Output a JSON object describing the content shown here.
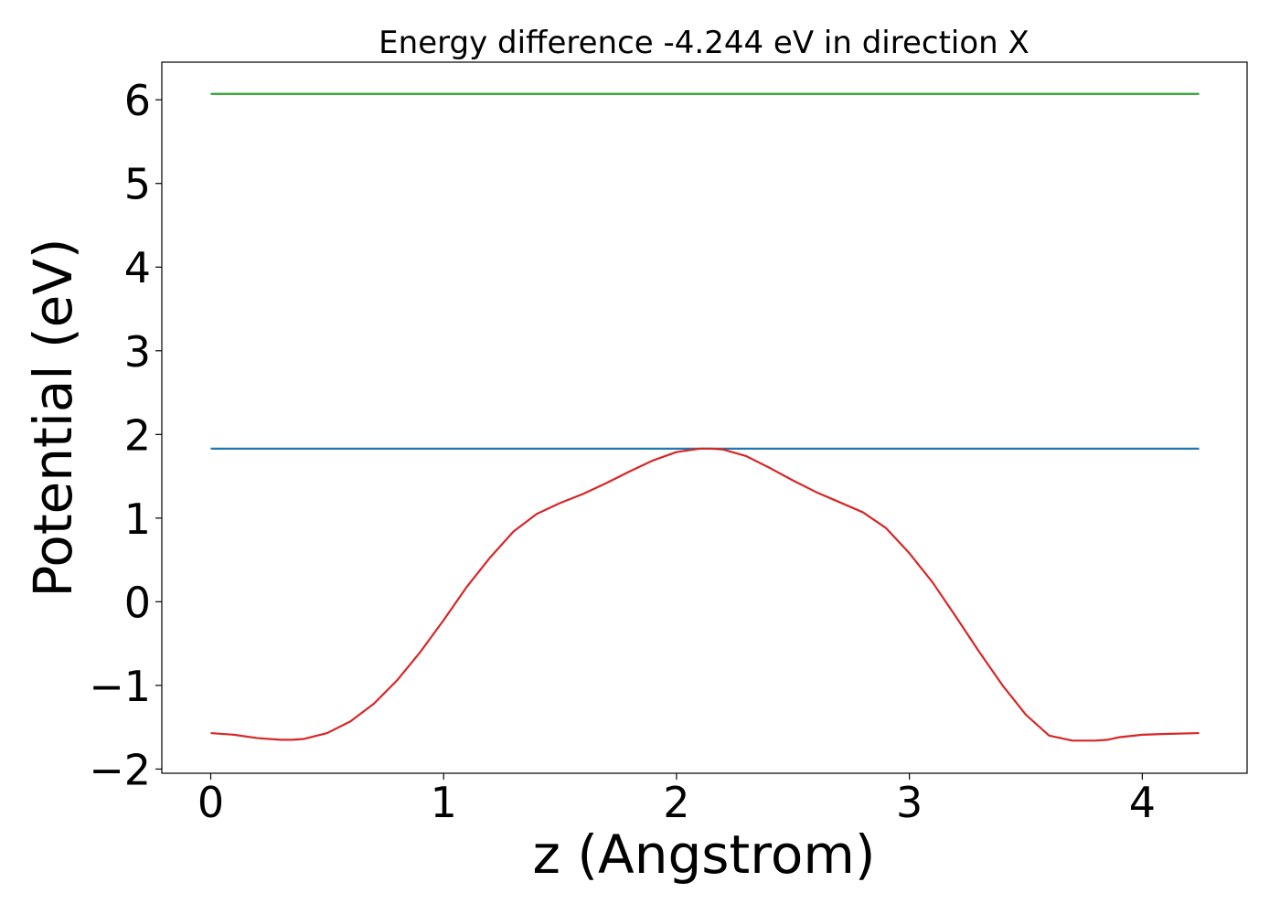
{
  "chart_data": {
    "type": "line",
    "title": "Energy difference -4.244 eV in direction X",
    "xlabel": "z (Angstrom)",
    "ylabel": "Potential (eV)",
    "xlim": [
      -0.21,
      4.45
    ],
    "ylim": [
      -2.05,
      6.45
    ],
    "xticks": [
      0,
      1,
      2,
      3,
      4
    ],
    "yticks": [
      -2,
      -1,
      0,
      1,
      2,
      3,
      4,
      5,
      6
    ],
    "xtick_labels": [
      "0",
      "1",
      "2",
      "3",
      "4"
    ],
    "ytick_labels": [
      "−2",
      "−1",
      "0",
      "1",
      "2",
      "3",
      "4",
      "5",
      "6"
    ],
    "grid": false,
    "legend": false,
    "series": [
      {
        "color": "#2ca02c",
        "x": [
          0,
          4.244
        ],
        "y": [
          6.07,
          6.07
        ]
      },
      {
        "color": "#1f77b4",
        "x": [
          0,
          4.244
        ],
        "y": [
          1.83,
          1.83
        ]
      },
      {
        "color": "#d62728",
        "x": [
          0,
          0.1,
          0.2,
          0.3,
          0.35,
          0.4,
          0.5,
          0.6,
          0.7,
          0.8,
          0.9,
          1.0,
          1.1,
          1.2,
          1.3,
          1.4,
          1.5,
          1.6,
          1.7,
          1.8,
          1.9,
          2.0,
          2.1,
          2.15,
          2.2,
          2.3,
          2.4,
          2.5,
          2.6,
          2.7,
          2.8,
          2.9,
          3.0,
          3.1,
          3.2,
          3.3,
          3.4,
          3.5,
          3.6,
          3.7,
          3.8,
          3.85,
          3.9,
          4.0,
          4.1,
          4.244
        ],
        "y": [
          -1.57,
          -1.59,
          -1.63,
          -1.65,
          -1.65,
          -1.64,
          -1.57,
          -1.43,
          -1.22,
          -0.94,
          -0.6,
          -0.22,
          0.18,
          0.53,
          0.84,
          1.05,
          1.18,
          1.29,
          1.42,
          1.56,
          1.69,
          1.79,
          1.83,
          1.83,
          1.82,
          1.74,
          1.6,
          1.45,
          1.31,
          1.19,
          1.07,
          0.88,
          0.58,
          0.23,
          -0.18,
          -0.6,
          -1.0,
          -1.35,
          -1.6,
          -1.66,
          -1.66,
          -1.65,
          -1.62,
          -1.59,
          -1.58,
          -1.57
        ]
      }
    ]
  }
}
